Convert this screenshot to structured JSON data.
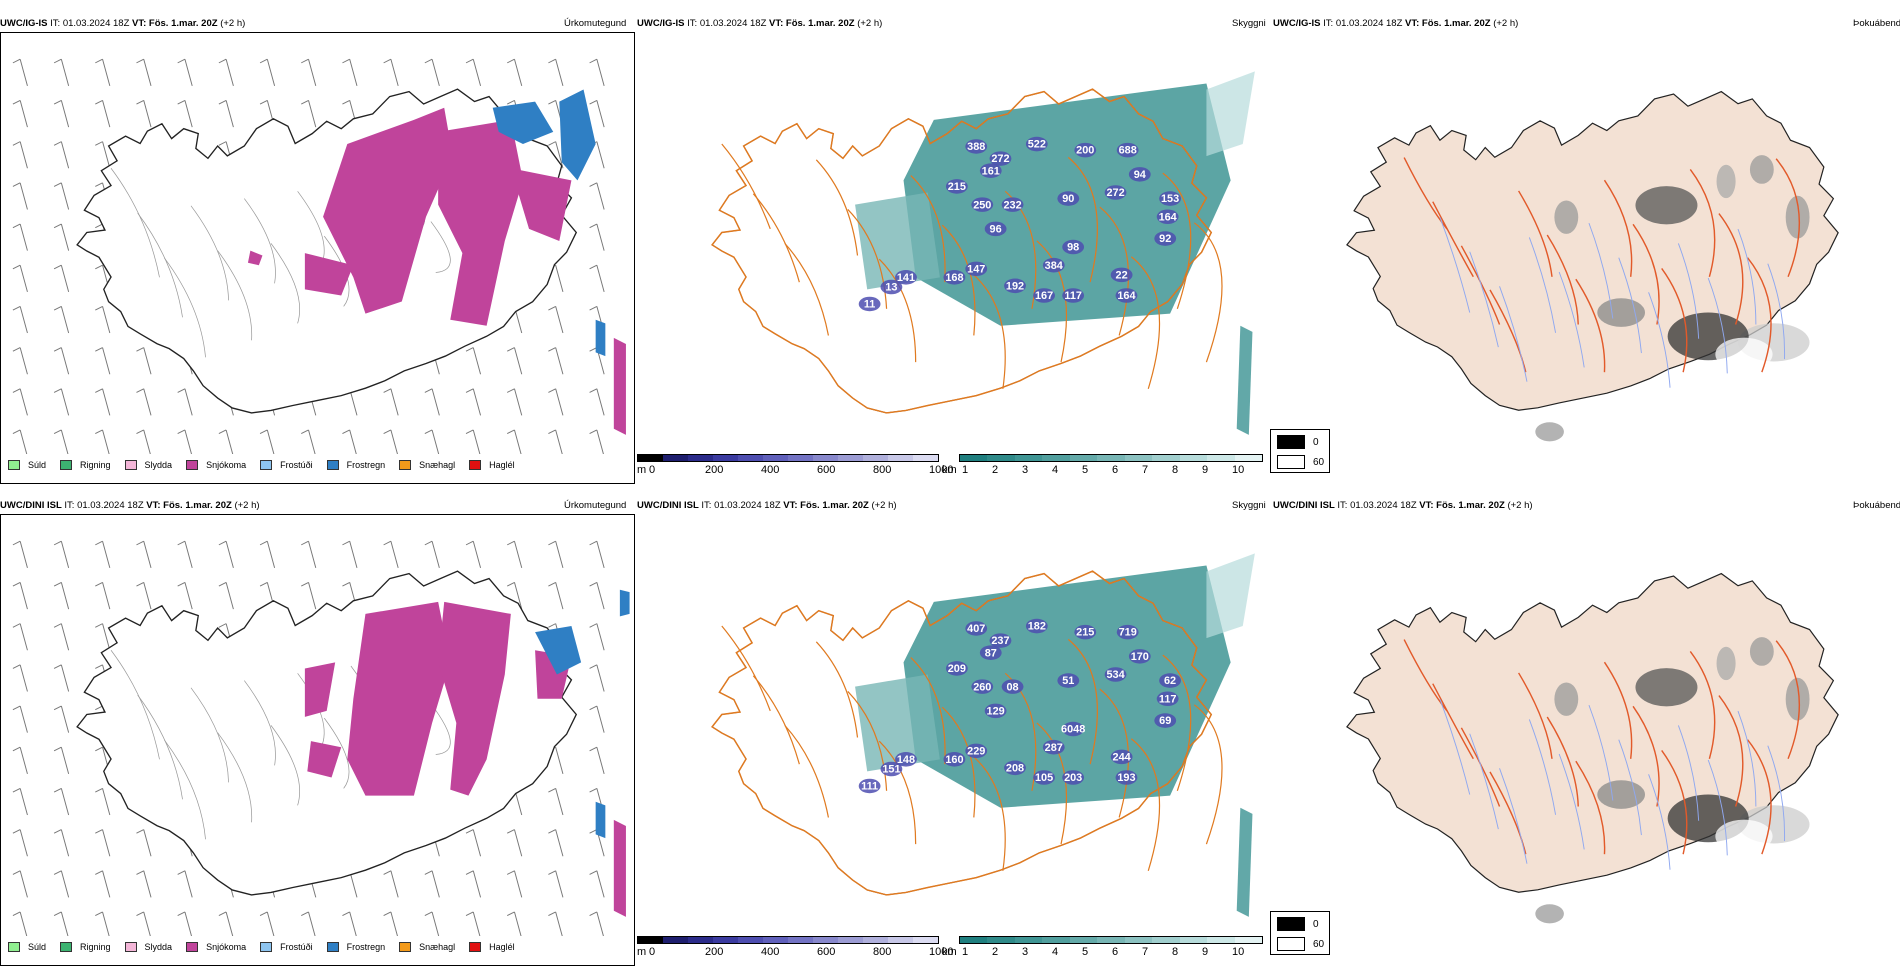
{
  "rows": [
    {
      "precip": {
        "model": "UWC/IG-IS",
        "it_label": "IT:",
        "it_value": "01.03.2024 18Z",
        "vt_label": "VT:",
        "vt_value": "Fös. 1.mar. 20Z",
        "lead": "(+2 h)",
        "title": "Úrkomutegund"
      },
      "cloud": {
        "model": "UWC/IG-IS",
        "it_label": "IT:",
        "it_value": "01.03.2024 18Z",
        "vt_label": "VT:",
        "vt_value": "Fös. 1.mar. 20Z",
        "lead": "(+2 h)",
        "title": "Skyggni",
        "labels": [
          "388",
          "272",
          "522",
          "200",
          "688",
          "161",
          "215",
          "250",
          "232",
          "96",
          "94",
          "272",
          "90",
          "153",
          "164",
          "92",
          "98",
          "384",
          "141",
          "168",
          "147",
          "192",
          "167",
          "117",
          "22",
          "164",
          "13",
          "11"
        ]
      },
      "fog": {
        "model": "UWC/IG-IS",
        "it_label": "IT:",
        "it_value": "01.03.2024 18Z",
        "vt_label": "VT:",
        "vt_value": "Fös. 1.mar. 20Z",
        "lead": "(+2 h)",
        "title": "Þokuábendi"
      }
    },
    {
      "precip": {
        "model": "UWC/DINI ISL",
        "it_label": "IT:",
        "it_value": "01.03.2024 18Z",
        "vt_label": "VT:",
        "vt_value": "Fös. 1.mar. 20Z",
        "lead": "(+2 h)",
        "title": "Úrkomutegund"
      },
      "cloud": {
        "model": "UWC/DINI ISL",
        "it_label": "IT:",
        "it_value": "01.03.2024 18Z",
        "vt_label": "VT:",
        "vt_value": "Fös. 1.mar. 20Z",
        "lead": "(+2 h)",
        "title": "Skyggni",
        "labels": [
          "407",
          "237",
          "182",
          "215",
          "719",
          "87",
          "209",
          "260",
          "08",
          "129",
          "170",
          "534",
          "51",
          "62",
          "117",
          "69",
          "6048",
          "287",
          "148",
          "160",
          "229",
          "208",
          "105",
          "203",
          "244",
          "193",
          "151",
          "111"
        ]
      },
      "fog": {
        "model": "UWC/DINI ISL",
        "it_label": "IT:",
        "it_value": "01.03.2024 18Z",
        "vt_label": "VT:",
        "vt_value": "Fös. 1.mar. 20Z",
        "lead": "(+2 h)",
        "title": "Þokuábendi"
      }
    }
  ],
  "precip_legend": [
    {
      "label": "Súld",
      "color": "#90ee90"
    },
    {
      "label": "Rigning",
      "color": "#3cb371"
    },
    {
      "label": "Slydda",
      "color": "#f4b6d8"
    },
    {
      "label": "Snjókoma",
      "color": "#c0449b"
    },
    {
      "label": "Frostúði",
      "color": "#8ec5f0"
    },
    {
      "label": "Frostregn",
      "color": "#2f7fc4"
    },
    {
      "label": "Snæhagl",
      "color": "#f39a1a"
    },
    {
      "label": "Haglél",
      "color": "#e01010"
    }
  ],
  "cloud_base_scale": {
    "unit": "m",
    "ticks": [
      "0",
      "200",
      "400",
      "600",
      "800",
      "1000"
    ],
    "colors": [
      "#000000",
      "#1e1e6e",
      "#2b2b8a",
      "#3b3ba0",
      "#4e4eb0",
      "#6060bb",
      "#7373c4",
      "#8888cc",
      "#9c9cd4",
      "#b0b0dc",
      "#c8c8e8",
      "#dcdcf2"
    ]
  },
  "visibility_scale": {
    "unit": "km",
    "ticks": [
      "1",
      "2",
      "3",
      "4",
      "5",
      "6",
      "7",
      "8",
      "9",
      "10"
    ],
    "colors": [
      "#1f7f7f",
      "#2f8a89",
      "#3f9594",
      "#519f9e",
      "#64aaa9",
      "#78b6b5",
      "#8cc2c1",
      "#a1cfce",
      "#b7dcdb",
      "#cde8e7",
      "#e4f3f3"
    ]
  },
  "fog_legend": [
    {
      "label": "0",
      "color": "#000000"
    },
    {
      "label": "60",
      "color": "#ffffff"
    }
  ]
}
